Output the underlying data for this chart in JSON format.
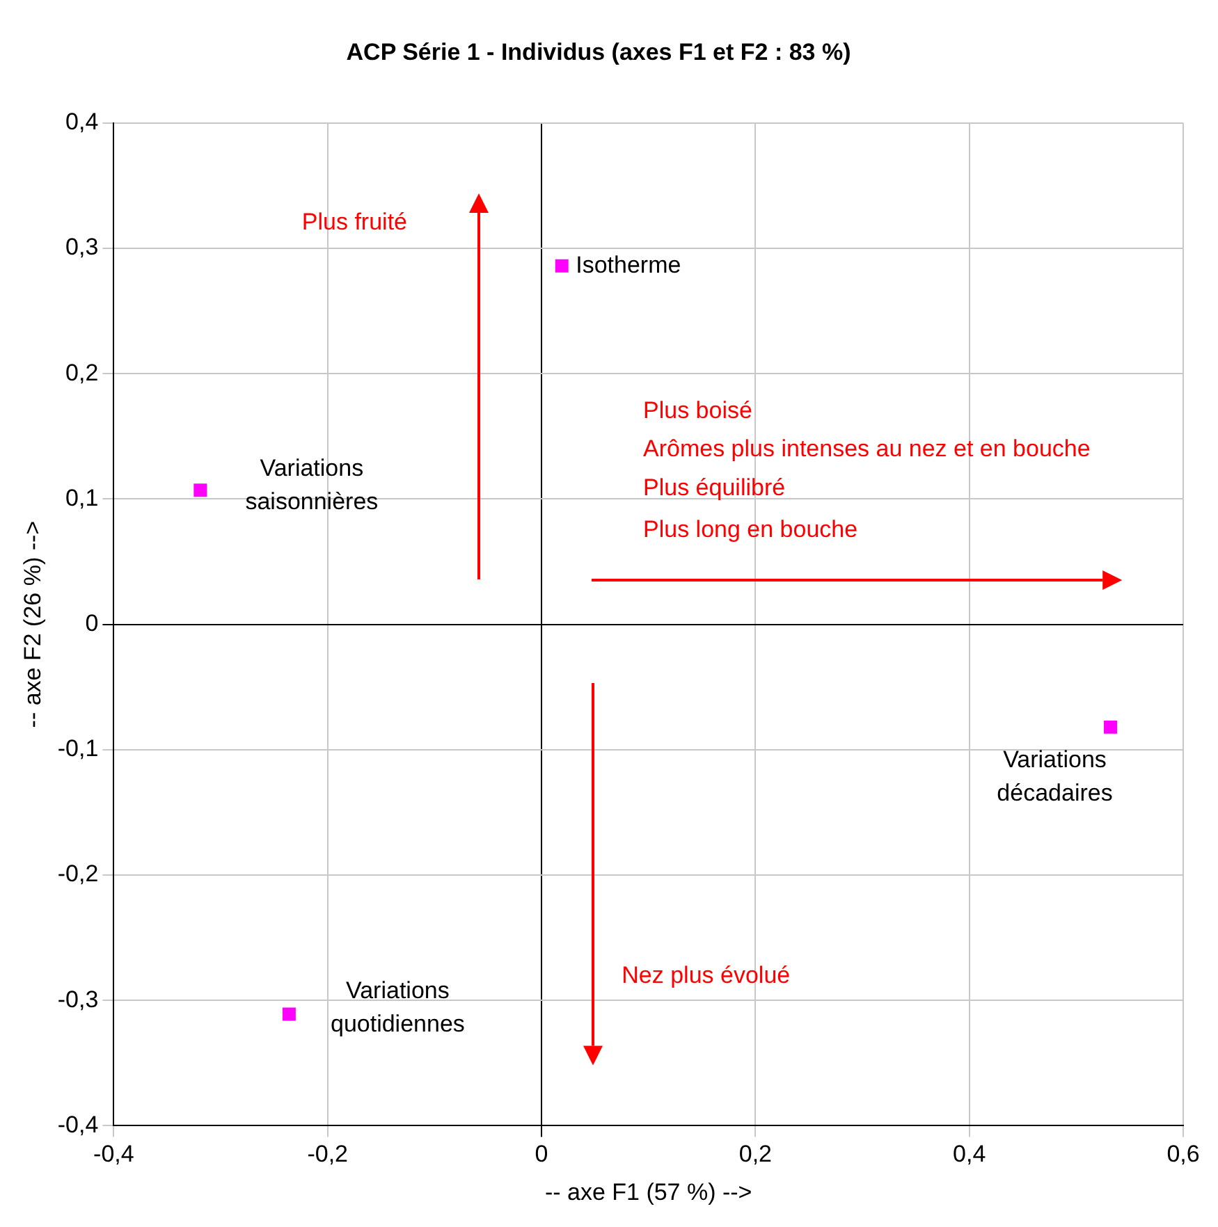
{
  "chart_data": {
    "type": "scatter",
    "title": "ACP Série 1 - Individus (axes F1 et F2 : 83 %)",
    "xlabel": "-- axe F1 (57 %) -->",
    "ylabel": "-- axe F2 (26 %) -->",
    "x": [
      0.019,
      -0.319,
      0.532,
      -0.236
    ],
    "series": [
      {
        "color": "#ff00ff",
        "values": [
          0.286,
          0.107,
          -0.082,
          -0.311
        ]
      }
    ],
    "marker": "square",
    "grid": true,
    "legend": false,
    "xlim": [
      -0.4,
      0.6
    ],
    "ylim": [
      -0.4,
      0.4
    ],
    "xticks": [
      {
        "value": -0.4,
        "label": "-0,4"
      },
      {
        "value": -0.2,
        "label": "-0,2"
      },
      0,
      {
        "value": 0.2,
        "label": "0,2"
      },
      {
        "value": 0.4,
        "label": "0,4"
      },
      {
        "value": 0.6,
        "label": "0,6"
      }
    ],
    "yticks": [
      {
        "value": -0.4,
        "label": "-0,4"
      },
      {
        "value": -0.3,
        "label": "-0,3"
      },
      {
        "value": -0.2,
        "label": "-0,2"
      },
      {
        "value": -0.1,
        "label": "-0,1"
      },
      0,
      {
        "value": 0.1,
        "label": "0,1"
      },
      {
        "value": 0.2,
        "label": "0,2"
      },
      {
        "value": 0.3,
        "label": "0,3"
      },
      {
        "value": 0.4,
        "label": "0,4"
      }
    ],
    "annotations": [
      {
        "text": "Isotherme",
        "x": 0.019,
        "y": 0.286
      },
      {
        "text": "Variations saisonnières",
        "x": -0.319,
        "y": 0.107
      },
      {
        "text": "Variations décadaires",
        "x": 0.532,
        "y": -0.082
      },
      {
        "text": "Variations quotidiennes",
        "x": -0.236,
        "y": -0.311
      },
      "Plus fruité",
      "Plus boisé",
      "Arômes plus intenses au nez et en bouche",
      "Plus équilibré",
      "Plus long en bouche",
      "Nez plus évolué"
    ]
  }
}
